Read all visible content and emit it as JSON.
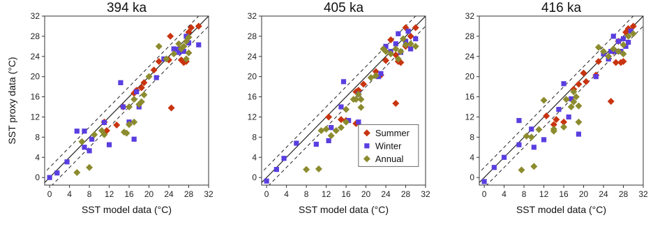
{
  "chart_data": [
    {
      "type": "scatter",
      "title": "394 ka",
      "xlabel": "SST model data (°C)",
      "ylabel": "SST proxy data (°C)",
      "xlim": [
        -1,
        32
      ],
      "ylim": [
        -1.5,
        32
      ],
      "xticks": [
        0,
        4,
        8,
        12,
        16,
        20,
        24,
        28,
        32
      ],
      "yticks": [
        0,
        4,
        8,
        12,
        16,
        20,
        24,
        28,
        32
      ],
      "reference_lines": [
        "1:1 line (solid)",
        "±2 °C (dashed)"
      ],
      "series": [
        {
          "name": "Summer",
          "marker": "diamond",
          "color": "#c8340f",
          "points": [
            [
              11,
              11
            ],
            [
              11.5,
              9.3
            ],
            [
              13.5,
              10.4
            ],
            [
              14.8,
              14
            ],
            [
              17,
              16.7
            ],
            [
              17.5,
              17.3
            ],
            [
              18.5,
              17.8
            ],
            [
              19,
              18.8
            ],
            [
              21,
              21.3
            ],
            [
              22,
              23
            ],
            [
              24,
              23.3
            ],
            [
              24.3,
              28
            ],
            [
              24.5,
              13.8
            ],
            [
              26,
              25.5
            ],
            [
              26.5,
              23.3
            ],
            [
              27,
              22.8
            ],
            [
              27.5,
              23
            ],
            [
              28,
              28.8
            ],
            [
              28.5,
              29.7
            ],
            [
              30,
              30
            ]
          ]
        },
        {
          "name": "Winter",
          "marker": "square",
          "color": "#5a3ee0",
          "points": [
            [
              0,
              0
            ],
            [
              1.5,
              0.9
            ],
            [
              3.5,
              3.1
            ],
            [
              5.5,
              9.2
            ],
            [
              7,
              6
            ],
            [
              7,
              9.2
            ],
            [
              8,
              5.3
            ],
            [
              8.5,
              7.6
            ],
            [
              11,
              10.9
            ],
            [
              12,
              6.5
            ],
            [
              14.3,
              18.8
            ],
            [
              14.8,
              14
            ],
            [
              16,
              11
            ],
            [
              17,
              7.6
            ],
            [
              17.5,
              17
            ],
            [
              18,
              14
            ],
            [
              21.5,
              19.8
            ],
            [
              23,
              23.5
            ],
            [
              25,
              25.5
            ],
            [
              25.5,
              25.4
            ],
            [
              26,
              24.8
            ],
            [
              26.5,
              25.5
            ],
            [
              27,
              25
            ],
            [
              27.5,
              28
            ],
            [
              28,
              26.7
            ],
            [
              30,
              26.3
            ]
          ]
        },
        {
          "name": "Annual",
          "marker": "diamond",
          "color": "#8c8b2e",
          "points": [
            [
              5.5,
              1
            ],
            [
              6.5,
              7.1
            ],
            [
              8,
              2
            ],
            [
              9,
              8.5
            ],
            [
              10.5,
              9.3
            ],
            [
              11,
              8.5
            ],
            [
              15,
              9
            ],
            [
              15.5,
              8.8
            ],
            [
              16,
              10.5
            ],
            [
              17,
              11
            ],
            [
              16,
              14
            ],
            [
              17,
              15.5
            ],
            [
              18,
              14.5
            ],
            [
              18.5,
              15
            ],
            [
              19,
              16.4
            ],
            [
              20,
              20
            ],
            [
              22,
              26
            ],
            [
              23.5,
              23.5
            ],
            [
              25,
              24.5
            ],
            [
              26,
              26.5
            ],
            [
              26.5,
              25.5
            ],
            [
              27,
              26
            ],
            [
              27.5,
              27
            ],
            [
              28,
              27.8
            ],
            [
              28,
              24.7
            ],
            [
              27.5,
              23.5
            ]
          ]
        }
      ]
    },
    {
      "type": "scatter",
      "title": "405 ka",
      "xlabel": "SST model data (°C)",
      "ylabel": "",
      "xlim": [
        -1,
        32
      ],
      "ylim": [
        -1.5,
        32
      ],
      "xticks": [
        0,
        4,
        8,
        12,
        16,
        20,
        24,
        28,
        32
      ],
      "yticks": [
        0,
        4,
        8,
        12,
        16,
        20,
        24,
        28,
        32
      ],
      "series": [
        {
          "name": "Summer",
          "marker": "diamond",
          "color": "#c8340f",
          "points": [
            [
              12.5,
              12
            ],
            [
              15,
              11.5
            ],
            [
              16,
              11.3
            ],
            [
              18,
              10.7
            ],
            [
              18,
              17
            ],
            [
              18.5,
              17.3
            ],
            [
              19.5,
              18.5
            ],
            [
              22,
              21
            ],
            [
              23,
              20.3
            ],
            [
              24,
              23.2
            ],
            [
              25,
              27.3
            ],
            [
              26,
              14.7
            ],
            [
              26,
              24.3
            ],
            [
              26.5,
              23
            ],
            [
              27,
              22.8
            ],
            [
              28,
              26
            ],
            [
              28,
              29.7
            ],
            [
              29,
              28
            ],
            [
              30,
              29.7
            ]
          ]
        },
        {
          "name": "Winter",
          "marker": "square",
          "color": "#5a3ee0",
          "points": [
            [
              0,
              -0.7
            ],
            [
              2,
              1.6
            ],
            [
              3.5,
              3.8
            ],
            [
              6,
              6.8
            ],
            [
              10,
              6.6
            ],
            [
              12.5,
              7.3
            ],
            [
              13,
              9.9
            ],
            [
              15,
              14
            ],
            [
              15.5,
              19
            ],
            [
              16.5,
              11.3
            ],
            [
              18.5,
              16.5
            ],
            [
              18.5,
              11
            ],
            [
              19,
              8.8
            ],
            [
              22.5,
              20
            ],
            [
              23,
              20.6
            ],
            [
              24,
              26
            ],
            [
              25,
              25
            ],
            [
              26,
              26.5
            ],
            [
              26.5,
              28.5
            ],
            [
              27,
              24.8
            ],
            [
              28,
              27
            ],
            [
              28.5,
              29
            ],
            [
              29,
              25.5
            ],
            [
              30,
              27.5
            ]
          ]
        },
        {
          "name": "Annual",
          "marker": "diamond",
          "color": "#8c8b2e",
          "points": [
            [
              8,
              1.6
            ],
            [
              10.5,
              1.7
            ],
            [
              11,
              9.3
            ],
            [
              12,
              9.6
            ],
            [
              13,
              8.3
            ],
            [
              14,
              9.3
            ],
            [
              15,
              9.9
            ],
            [
              16,
              11
            ],
            [
              16,
              13.5
            ],
            [
              17.5,
              15.5
            ],
            [
              18,
              15.5
            ],
            [
              18.5,
              16.5
            ],
            [
              19,
              13.9
            ],
            [
              19,
              15.5
            ],
            [
              21,
              19.8
            ],
            [
              22,
              20.2
            ],
            [
              23.5,
              25.5
            ],
            [
              24,
              25
            ],
            [
              25,
              24.5
            ],
            [
              26,
              25.5
            ],
            [
              26.5,
              23.5
            ],
            [
              27,
              25
            ],
            [
              27.5,
              27.5
            ],
            [
              28,
              26.3
            ],
            [
              29,
              26.5
            ],
            [
              30,
              26
            ]
          ]
        }
      ],
      "legend": {
        "position": "lower-right",
        "entries": [
          "Summer",
          "Winter",
          "Annual"
        ]
      }
    },
    {
      "type": "scatter",
      "title": "416 ka",
      "xlabel": "SST model data (°C)",
      "ylabel": "",
      "xlim": [
        -1,
        32
      ],
      "ylim": [
        -1.5,
        32
      ],
      "xticks": [
        0,
        4,
        8,
        12,
        16,
        20,
        24,
        28,
        32
      ],
      "yticks": [
        0,
        4,
        8,
        12,
        16,
        20,
        24,
        28,
        32
      ],
      "series": [
        {
          "name": "Summer",
          "marker": "diamond",
          "color": "#c8340f",
          "points": [
            [
              12.5,
              12.2
            ],
            [
              14,
              10.5
            ],
            [
              14.5,
              11.5
            ],
            [
              16,
              11
            ],
            [
              18,
              17.5
            ],
            [
              19,
              18.5
            ],
            [
              20,
              20.7
            ],
            [
              20.5,
              19
            ],
            [
              22.5,
              20.3
            ],
            [
              23,
              23
            ],
            [
              25.5,
              15.1
            ],
            [
              26,
              25
            ],
            [
              26.5,
              22.8
            ],
            [
              27,
              27
            ],
            [
              27.5,
              22.8
            ],
            [
              28,
              23
            ],
            [
              28.5,
              28.8
            ],
            [
              29,
              29.5
            ],
            [
              30,
              30
            ]
          ]
        },
        {
          "name": "Winter",
          "marker": "square",
          "color": "#5a3ee0",
          "points": [
            [
              0,
              -0.8
            ],
            [
              2,
              2
            ],
            [
              4,
              4
            ],
            [
              7,
              6.5
            ],
            [
              7,
              11.3
            ],
            [
              9.5,
              9.6
            ],
            [
              10,
              6
            ],
            [
              12,
              7.5
            ],
            [
              15,
              13.5
            ],
            [
              16,
              18.6
            ],
            [
              17,
              12
            ],
            [
              17.5,
              15.6
            ],
            [
              19,
              8.6
            ],
            [
              22.5,
              20
            ],
            [
              24,
              24.5
            ],
            [
              25,
              23.5
            ],
            [
              25.5,
              25
            ],
            [
              26,
              28
            ],
            [
              26.5,
              25
            ],
            [
              27,
              27
            ],
            [
              27.5,
              25
            ],
            [
              28,
              27.5
            ],
            [
              28.5,
              26
            ],
            [
              29,
              26.8
            ],
            [
              29.5,
              29
            ]
          ]
        },
        {
          "name": "Annual",
          "marker": "diamond",
          "color": "#8c8b2e",
          "points": [
            [
              7.5,
              1.5
            ],
            [
              8.5,
              8.2
            ],
            [
              9.5,
              8
            ],
            [
              10,
              2.2
            ],
            [
              11,
              9.5
            ],
            [
              12,
              15.3
            ],
            [
              14,
              9.2
            ],
            [
              14,
              9.6
            ],
            [
              16,
              10
            ],
            [
              16.5,
              15.5
            ],
            [
              17.5,
              14
            ],
            [
              18,
              15
            ],
            [
              18,
              17
            ],
            [
              18.5,
              16
            ],
            [
              19,
              11
            ],
            [
              19,
              14.2
            ],
            [
              23,
              25.8
            ],
            [
              24,
              25
            ],
            [
              25,
              24
            ],
            [
              26,
              25.5
            ],
            [
              27,
              25
            ],
            [
              28,
              26.3
            ],
            [
              28,
              24.5
            ],
            [
              29,
              28
            ],
            [
              30,
              28.5
            ]
          ]
        }
      ]
    }
  ]
}
